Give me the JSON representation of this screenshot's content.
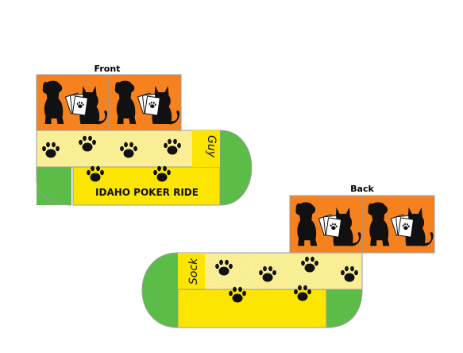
{
  "front": {
    "label": "Front",
    "banner_text": "IDAHO POKER RIDE",
    "script_text": "Guy"
  },
  "back": {
    "label": "Back",
    "script_text": "Sock"
  },
  "colors": {
    "orange": "#f5821f",
    "yellow": "#fce500",
    "pale_yellow": "#fdf3a0",
    "green": "#5bbd48",
    "border": "#9a9a9a",
    "silhouette": "#111111"
  },
  "icons": [
    "dog-and-cat-with-cards-icon",
    "paw-print-icon"
  ]
}
